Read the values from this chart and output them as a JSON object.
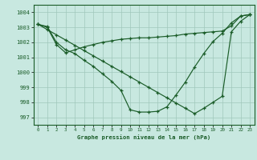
{
  "title": "Graphe pression niveau de la mer (hPa)",
  "background_color": "#c8e8e0",
  "grid_color": "#a0c8bc",
  "line_color": "#1a5c28",
  "xlim": [
    -0.5,
    23.5
  ],
  "ylim": [
    996.5,
    1004.5
  ],
  "yticks": [
    997,
    998,
    999,
    1000,
    1001,
    1002,
    1003,
    1004
  ],
  "xticks": [
    0,
    1,
    2,
    3,
    4,
    5,
    6,
    7,
    8,
    9,
    10,
    11,
    12,
    13,
    14,
    15,
    16,
    17,
    18,
    19,
    20,
    21,
    22,
    23
  ],
  "series1_x": [
    0,
    1,
    2,
    3,
    4,
    5,
    6,
    7,
    8,
    9,
    10,
    11,
    12,
    13,
    14,
    15,
    16,
    17,
    18,
    19,
    20,
    21,
    22,
    23
  ],
  "series1_y": [
    1003.2,
    1003.0,
    1001.85,
    1001.3,
    1001.5,
    1001.7,
    1001.85,
    1002.0,
    1002.1,
    1002.2,
    1002.25,
    1002.3,
    1002.3,
    1002.35,
    1002.4,
    1002.45,
    1002.55,
    1002.6,
    1002.65,
    1002.7,
    1002.75,
    1003.1,
    1003.75,
    1003.85
  ],
  "series2_x": [
    0,
    1,
    2,
    3,
    4,
    5,
    6,
    7,
    8,
    9,
    10,
    11,
    12,
    13,
    14,
    15,
    16,
    17,
    18,
    19,
    20,
    21,
    22,
    23
  ],
  "series2_y": [
    1003.2,
    1002.85,
    1002.5,
    1002.15,
    1001.8,
    1001.45,
    1001.1,
    1000.75,
    1000.4,
    1000.05,
    999.7,
    999.35,
    999.0,
    998.65,
    998.3,
    997.95,
    997.6,
    997.25,
    997.6,
    998.0,
    998.4,
    1002.7,
    1003.4,
    1003.85
  ],
  "series3_x": [
    0,
    1,
    2,
    3,
    4,
    5,
    6,
    7,
    8,
    9,
    10,
    11,
    12,
    13,
    14,
    15,
    16,
    17,
    18,
    19,
    20,
    21,
    22,
    23
  ],
  "series3_y": [
    1003.2,
    1003.05,
    1002.0,
    1001.5,
    1001.25,
    1000.8,
    1000.4,
    999.9,
    999.4,
    998.8,
    997.5,
    997.35,
    997.35,
    997.4,
    997.7,
    998.5,
    999.35,
    1000.35,
    1001.25,
    1002.05,
    1002.6,
    1003.3,
    1003.75,
    1003.85
  ]
}
